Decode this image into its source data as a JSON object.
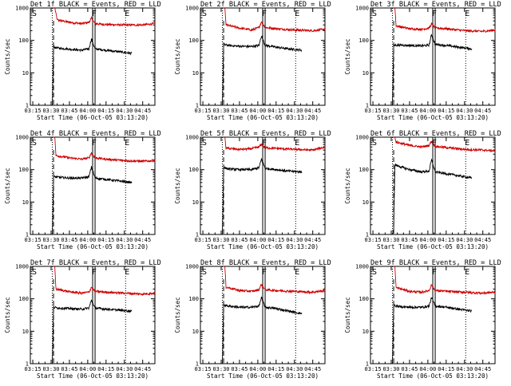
{
  "figure": {
    "red_color": "#cc0000",
    "black_color": "#000000"
  },
  "chart_data": [
    {
      "type": "line",
      "title": "Det 1f BLACK = Events, RED = LLD",
      "xlabel": "Start Time (06-Oct-05 03:13:20)",
      "ylabel": "Counts/sec",
      "y_scale": "log",
      "ylim": [
        1,
        1000
      ],
      "x_ticks": [
        "03:15",
        "03:30",
        "03:45",
        "04:00",
        "04:15",
        "04:30",
        "04:45"
      ],
      "y_ticks": [
        "1",
        "10",
        "100",
        "1000"
      ],
      "markers": [
        "S",
        "F",
        "E"
      ],
      "series": [
        {
          "color": "red",
          "start": "03:33",
          "end": "04:55",
          "x": [
            "03:33",
            "03:35",
            "03:45",
            "03:55",
            "04:01",
            "04:03",
            "04:06",
            "04:15",
            "04:30",
            "04:45",
            "04:55"
          ],
          "y": [
            1000,
            430,
            360,
            330,
            360,
            480,
            330,
            310,
            300,
            300,
            330
          ]
        },
        {
          "color": "black",
          "start": "03:31",
          "end": "04:36",
          "x": [
            "03:31",
            "03:32",
            "03:36",
            "03:45",
            "03:55",
            "04:01",
            "04:03",
            "04:06",
            "04:15",
            "04:25",
            "04:36"
          ],
          "y": [
            1,
            62,
            58,
            54,
            50,
            55,
            110,
            55,
            50,
            45,
            40
          ]
        }
      ]
    },
    {
      "type": "line",
      "title": "Det 2f BLACK = Events, RED = LLD",
      "xlabel": "Start Time (06-Oct-05 03:13:20)",
      "ylabel": "Counts/sec",
      "y_scale": "log",
      "ylim": [
        1,
        1000
      ],
      "x_ticks": [
        "03:15",
        "03:30",
        "03:45",
        "04:00",
        "04:15",
        "04:30",
        "04:45"
      ],
      "y_ticks": [
        "1",
        "10",
        "100",
        "1000"
      ],
      "markers": [
        "S",
        "F",
        "E"
      ],
      "series": [
        {
          "color": "red",
          "start": "03:33",
          "end": "04:55",
          "x": [
            "03:33",
            "03:34",
            "03:45",
            "03:55",
            "04:01",
            "04:03",
            "04:06",
            "04:15",
            "04:30",
            "04:45",
            "04:55"
          ],
          "y": [
            1000,
            300,
            240,
            210,
            250,
            380,
            250,
            230,
            210,
            200,
            220
          ]
        },
        {
          "color": "black",
          "start": "03:31",
          "end": "04:36",
          "x": [
            "03:31",
            "03:32",
            "03:36",
            "03:45",
            "03:55",
            "04:01",
            "04:03",
            "04:06",
            "04:15",
            "04:25",
            "04:36"
          ],
          "y": [
            1,
            75,
            70,
            66,
            65,
            70,
            140,
            70,
            62,
            55,
            50
          ]
        }
      ]
    },
    {
      "type": "line",
      "title": "Det 3f BLACK = Events, RED = LLD",
      "xlabel": "Start Time (06-Oct-05 03:13:20)",
      "ylabel": "Counts/sec",
      "y_scale": "log",
      "ylim": [
        1,
        1000
      ],
      "x_ticks": [
        "03:15",
        "03:30",
        "03:45",
        "04:00",
        "04:15",
        "04:30",
        "04:45"
      ],
      "y_ticks": [
        "1",
        "10",
        "100",
        "1000"
      ],
      "markers": [
        "S",
        "F",
        "E"
      ],
      "series": [
        {
          "color": "red",
          "start": "03:33",
          "end": "04:55",
          "x": [
            "03:33",
            "03:34",
            "03:45",
            "03:55",
            "04:01",
            "04:03",
            "04:06",
            "04:15",
            "04:30",
            "04:45",
            "04:55"
          ],
          "y": [
            1000,
            280,
            230,
            220,
            240,
            320,
            240,
            230,
            200,
            190,
            210
          ]
        },
        {
          "color": "black",
          "start": "03:31",
          "end": "04:36",
          "x": [
            "03:31",
            "03:32",
            "03:36",
            "03:45",
            "03:55",
            "04:01",
            "04:03",
            "04:06",
            "04:15",
            "04:25",
            "04:36"
          ],
          "y": [
            1,
            70,
            72,
            70,
            68,
            72,
            150,
            75,
            70,
            62,
            55
          ]
        }
      ]
    },
    {
      "type": "line",
      "title": "Det 4f BLACK = Events, RED = LLD",
      "xlabel": "Start Time (06-Oct-05 03:13:20)",
      "ylabel": "Counts/sec",
      "y_scale": "log",
      "ylim": [
        1,
        1000
      ],
      "x_ticks": [
        "03:15",
        "03:30",
        "03:45",
        "04:00",
        "04:15",
        "04:30",
        "04:45"
      ],
      "y_ticks": [
        "1",
        "10",
        "100",
        "1000"
      ],
      "markers": [
        "S",
        "F",
        "E"
      ],
      "series": [
        {
          "color": "red",
          "start": "03:33",
          "end": "04:55",
          "x": [
            "03:33",
            "03:34",
            "03:45",
            "03:55",
            "04:01",
            "04:03",
            "04:06",
            "04:15",
            "04:30",
            "04:45",
            "04:55"
          ],
          "y": [
            1000,
            270,
            230,
            210,
            230,
            330,
            230,
            210,
            190,
            180,
            190
          ]
        },
        {
          "color": "black",
          "start": "03:31",
          "end": "04:36",
          "x": [
            "03:31",
            "03:32",
            "03:36",
            "03:45",
            "03:55",
            "04:01",
            "04:03",
            "04:06",
            "04:15",
            "04:25",
            "04:36"
          ],
          "y": [
            1,
            60,
            58,
            55,
            55,
            60,
            120,
            55,
            50,
            45,
            40
          ]
        }
      ]
    },
    {
      "type": "line",
      "title": "Det 5f BLACK = Events, RED = LLD",
      "xlabel": "Start Time (06-Oct-05 03:13:20)",
      "ylabel": "Counts/sec",
      "y_scale": "log",
      "ylim": [
        1,
        1000
      ],
      "x_ticks": [
        "03:15",
        "03:30",
        "03:45",
        "04:00",
        "04:15",
        "04:30",
        "04:45"
      ],
      "y_ticks": [
        "1",
        "10",
        "100",
        "1000"
      ],
      "markers": [
        "S",
        "F",
        "E"
      ],
      "series": [
        {
          "color": "red",
          "start": "03:33",
          "end": "04:55",
          "x": [
            "03:33",
            "03:34",
            "03:45",
            "03:55",
            "04:01",
            "04:03",
            "04:06",
            "04:15",
            "04:30",
            "04:45",
            "04:55"
          ],
          "y": [
            1000,
            460,
            420,
            440,
            500,
            600,
            470,
            450,
            420,
            400,
            500
          ]
        },
        {
          "color": "black",
          "start": "03:31",
          "end": "04:36",
          "x": [
            "03:31",
            "03:32",
            "03:36",
            "03:45",
            "03:55",
            "04:01",
            "04:03",
            "04:06",
            "04:15",
            "04:25",
            "04:36"
          ],
          "y": [
            1,
            115,
            105,
            100,
            100,
            115,
            210,
            110,
            100,
            90,
            85
          ]
        }
      ]
    },
    {
      "type": "line",
      "title": "Det 6f BLACK = Events, RED = LLD",
      "xlabel": "Start Time (06-Oct-05 03:13:20)",
      "ylabel": "Counts/sec",
      "y_scale": "log",
      "ylim": [
        1,
        1000
      ],
      "x_ticks": [
        "03:15",
        "03:30",
        "03:45",
        "04:00",
        "04:15",
        "04:30",
        "04:45"
      ],
      "y_ticks": [
        "1",
        "10",
        "100",
        "1000"
      ],
      "markers": [
        "S",
        "F",
        "E"
      ],
      "series": [
        {
          "color": "red",
          "start": "03:33",
          "end": "04:55",
          "x": [
            "03:33",
            "03:34",
            "03:45",
            "03:55",
            "04:01",
            "04:03",
            "04:06",
            "04:15",
            "04:30",
            "04:45",
            "04:55"
          ],
          "y": [
            1000,
            700,
            560,
            500,
            560,
            750,
            520,
            480,
            420,
            400,
            380
          ]
        },
        {
          "color": "black",
          "start": "03:31",
          "end": "04:36",
          "x": [
            "03:31",
            "03:32",
            "03:33",
            "03:45",
            "03:55",
            "04:01",
            "04:03",
            "04:06",
            "04:15",
            "04:25",
            "04:36"
          ],
          "y": [
            1,
            1.5,
            140,
            100,
            85,
            90,
            200,
            85,
            75,
            65,
            55
          ]
        }
      ]
    },
    {
      "type": "line",
      "title": "Det 7f BLACK = Events, RED = LLD",
      "xlabel": "Start Time (06-Oct-05 03:13:20)",
      "ylabel": "Counts/sec",
      "y_scale": "log",
      "ylim": [
        1,
        1000
      ],
      "x_ticks": [
        "03:15",
        "03:30",
        "03:45",
        "04:00",
        "04:15",
        "04:30",
        "04:45"
      ],
      "y_ticks": [
        "1",
        "10",
        "100",
        "1000"
      ],
      "markers": [
        "S",
        "F",
        "E"
      ],
      "series": [
        {
          "color": "red",
          "start": "03:33",
          "end": "04:55",
          "x": [
            "03:33",
            "03:34",
            "03:45",
            "03:55",
            "04:01",
            "04:03",
            "04:06",
            "04:15",
            "04:30",
            "04:45",
            "04:55"
          ],
          "y": [
            1000,
            200,
            165,
            150,
            160,
            230,
            170,
            160,
            150,
            140,
            150
          ]
        },
        {
          "color": "black",
          "start": "03:31",
          "end": "04:36",
          "x": [
            "03:31",
            "03:32",
            "03:36",
            "03:45",
            "03:55",
            "04:01",
            "04:03",
            "04:06",
            "04:15",
            "04:25",
            "04:36"
          ],
          "y": [
            1,
            55,
            52,
            50,
            48,
            52,
            90,
            52,
            48,
            45,
            42
          ]
        }
      ]
    },
    {
      "type": "line",
      "title": "Det 8f BLACK = Events, RED = LLD",
      "xlabel": "Start Time (06-Oct-05 03:13:20)",
      "ylabel": "Counts/sec",
      "y_scale": "log",
      "ylim": [
        1,
        1000
      ],
      "x_ticks": [
        "03:15",
        "03:30",
        "03:45",
        "04:00",
        "04:15",
        "04:30",
        "04:45"
      ],
      "y_ticks": [
        "1",
        "10",
        "100",
        "1000"
      ],
      "markers": [
        "S",
        "F",
        "E"
      ],
      "series": [
        {
          "color": "red",
          "start": "03:33",
          "end": "04:55",
          "x": [
            "03:33",
            "03:34",
            "03:45",
            "03:55",
            "04:01",
            "04:03",
            "04:06",
            "04:15",
            "04:30",
            "04:45",
            "04:55"
          ],
          "y": [
            1000,
            230,
            180,
            170,
            190,
            280,
            190,
            180,
            170,
            160,
            180
          ]
        },
        {
          "color": "black",
          "start": "03:31",
          "end": "04:36",
          "x": [
            "03:31",
            "03:32",
            "03:36",
            "03:45",
            "03:55",
            "04:01",
            "04:03",
            "04:06",
            "04:15",
            "04:25",
            "04:36"
          ],
          "y": [
            1,
            65,
            60,
            55,
            55,
            60,
            110,
            55,
            50,
            42,
            35
          ]
        }
      ]
    },
    {
      "type": "line",
      "title": "Det 9f BLACK = Events, RED = LLD",
      "xlabel": "Start Time (06-Oct-05 03:13:20)",
      "ylabel": "Counts/sec",
      "y_scale": "log",
      "ylim": [
        1,
        1000
      ],
      "x_ticks": [
        "03:15",
        "03:30",
        "03:45",
        "04:00",
        "04:15",
        "04:30",
        "04:45"
      ],
      "y_ticks": [
        "1",
        "10",
        "100",
        "1000"
      ],
      "markers": [
        "S",
        "F",
        "E"
      ],
      "series": [
        {
          "color": "red",
          "start": "03:33",
          "end": "04:55",
          "x": [
            "03:33",
            "03:34",
            "03:45",
            "03:55",
            "04:01",
            "04:03",
            "04:06",
            "04:15",
            "04:30",
            "04:45",
            "04:55"
          ],
          "y": [
            1000,
            220,
            170,
            160,
            180,
            270,
            180,
            170,
            160,
            150,
            160
          ]
        },
        {
          "color": "black",
          "start": "03:31",
          "end": "04:36",
          "x": [
            "03:31",
            "03:32",
            "03:36",
            "03:45",
            "03:55",
            "04:01",
            "04:03",
            "04:06",
            "04:15",
            "04:25",
            "04:36"
          ],
          "y": [
            1,
            62,
            58,
            55,
            55,
            60,
            110,
            60,
            55,
            48,
            42
          ]
        }
      ]
    }
  ]
}
